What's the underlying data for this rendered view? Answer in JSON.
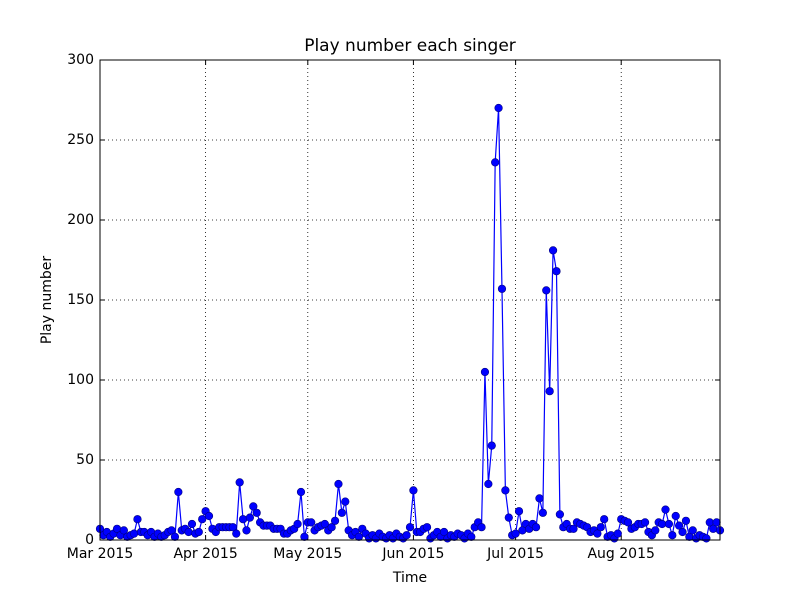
{
  "chart_data": {
    "type": "line",
    "title": "Play number each singer",
    "x_label": "Time",
    "y_label": "Play number",
    "categories": [
      "Mar 2015",
      null,
      null,
      null,
      null,
      null,
      null,
      null,
      null,
      null,
      null,
      null,
      null,
      null,
      null,
      null,
      null,
      null,
      null,
      null,
      null,
      null,
      null,
      null,
      null,
      null,
      null,
      null,
      null,
      null,
      null,
      "Apr 2015",
      null,
      null,
      null,
      null,
      null,
      null,
      null,
      null,
      null,
      null,
      null,
      null,
      null,
      null,
      null,
      null,
      null,
      null,
      null,
      null,
      null,
      null,
      null,
      null,
      null,
      null,
      null,
      null,
      null,
      "May 2015",
      null,
      null,
      null,
      null,
      null,
      null,
      null,
      null,
      null,
      null,
      null,
      null,
      null,
      null,
      null,
      null,
      null,
      null,
      null,
      null,
      null,
      null,
      null,
      null,
      null,
      null,
      null,
      null,
      null,
      null,
      "Jun 2015",
      null,
      null,
      null,
      null,
      null,
      null,
      null,
      null,
      null,
      null,
      null,
      null,
      null,
      null,
      null,
      null,
      null,
      null,
      null,
      null,
      null,
      null,
      null,
      null,
      null,
      null,
      null,
      null,
      null,
      "Jul 2015",
      null,
      null,
      null,
      null,
      null,
      null,
      null,
      null,
      null,
      null,
      null,
      null,
      null,
      null,
      null,
      null,
      null,
      null,
      null,
      null,
      null,
      null,
      null,
      null,
      null,
      null,
      null,
      null,
      null,
      null,
      "Aug 2015",
      null,
      null,
      null,
      null,
      null,
      null,
      null,
      null,
      null,
      null,
      null,
      null,
      null,
      null,
      null,
      null,
      null,
      null,
      null,
      null,
      null,
      null,
      null,
      null,
      null,
      null,
      null,
      null,
      null
    ],
    "values": [
      7,
      3,
      5,
      2,
      4,
      7,
      3,
      6,
      2,
      3,
      4,
      13,
      5,
      5,
      3,
      5,
      2,
      4,
      2,
      3,
      5,
      6,
      2,
      30,
      6,
      7,
      5,
      10,
      4,
      5,
      13,
      18,
      15,
      7,
      5,
      8,
      8,
      8,
      8,
      8,
      4,
      36,
      13,
      6,
      14,
      21,
      17,
      11,
      9,
      9,
      9,
      7,
      7,
      7,
      4,
      4,
      6,
      7,
      10,
      30,
      2,
      11,
      11,
      6,
      8,
      9,
      10,
      6,
      8,
      12,
      35,
      17,
      24,
      6,
      3,
      5,
      2,
      7,
      4,
      1,
      3,
      1,
      4,
      2,
      1,
      3,
      1,
      4,
      2,
      1,
      3,
      8,
      31,
      5,
      5,
      7,
      8,
      1,
      3,
      5,
      2,
      5,
      1,
      3,
      2,
      4,
      3,
      1,
      4,
      2,
      8,
      11,
      8,
      105,
      35,
      59,
      236,
      270,
      157,
      31,
      14,
      3,
      4,
      18,
      6,
      10,
      7,
      10,
      8,
      26,
      17,
      156,
      93,
      181,
      168,
      16,
      8,
      10,
      7,
      7,
      11,
      10,
      9,
      8,
      5,
      6,
      4,
      8,
      13,
      2,
      3,
      1,
      4,
      13,
      12,
      11,
      7,
      8,
      10,
      10,
      11,
      5,
      3,
      6,
      11,
      10,
      19,
      10,
      3,
      15,
      9,
      5,
      12,
      2,
      6,
      1,
      3,
      2,
      1,
      11,
      7,
      11,
      6
    ],
    "color": "#0000ff",
    "marker_edge": "#000080",
    "ylim": [
      0,
      300
    ],
    "yticks": [
      0,
      50,
      100,
      150,
      200,
      250,
      300
    ],
    "grid": true
  }
}
